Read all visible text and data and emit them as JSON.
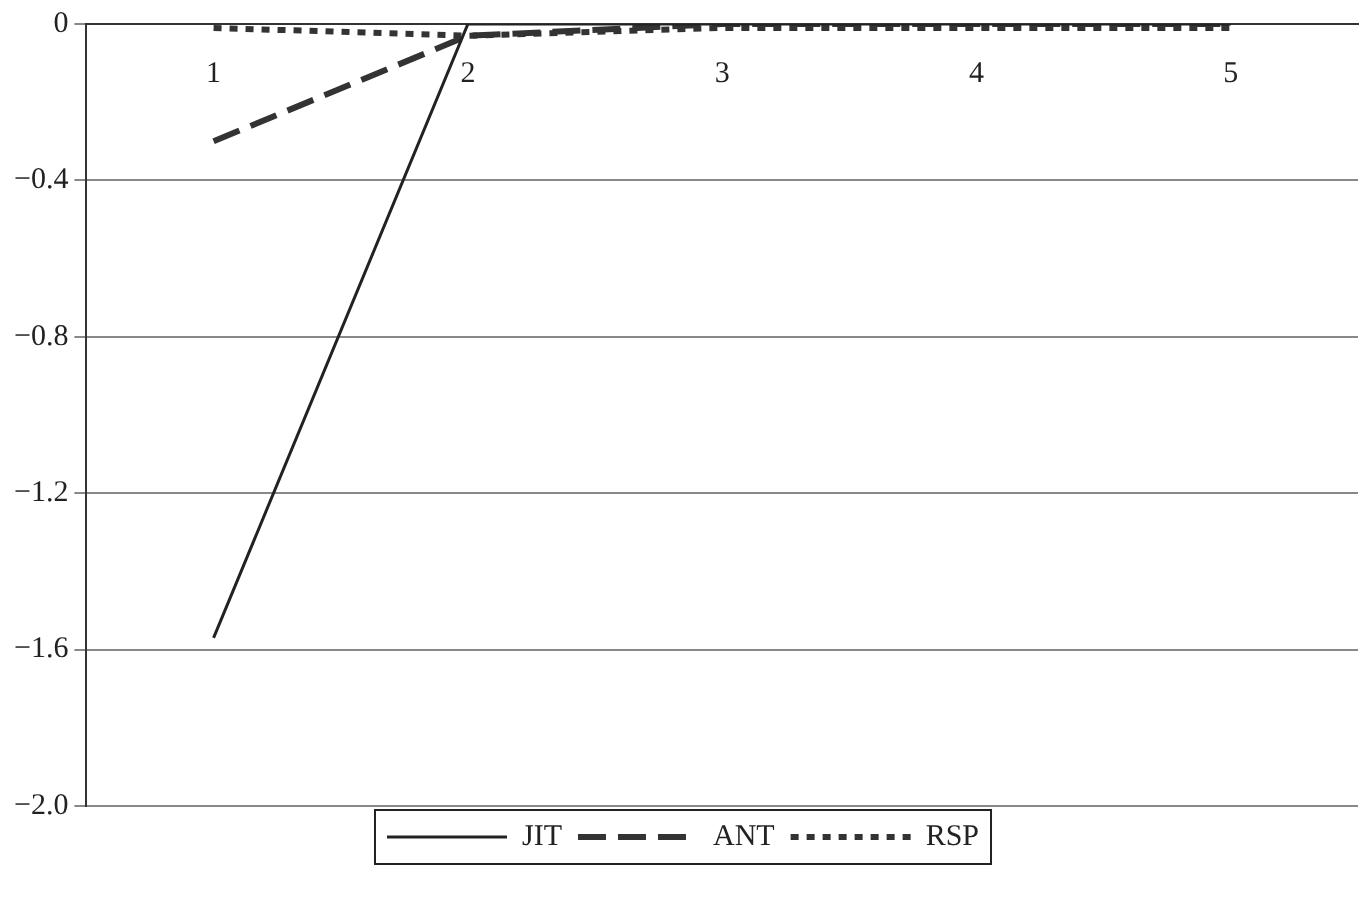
{
  "chart_data": {
    "type": "line",
    "categories": [
      "1",
      "2",
      "3",
      "4",
      "5"
    ],
    "series": [
      {
        "name": "JIT",
        "color": "#222222",
        "line_style": "solid",
        "values": [
          -1.57,
          0,
          0,
          0,
          0
        ]
      },
      {
        "name": "ANT",
        "color": "#333333",
        "line_style": "dashed",
        "values": [
          -0.3,
          -0.03,
          0,
          0,
          0
        ]
      },
      {
        "name": "RSP",
        "color": "#333333",
        "line_style": "dotted",
        "values": [
          -0.01,
          -0.03,
          -0.01,
          -0.01,
          -0.01
        ]
      }
    ],
    "ylim": [
      -2.0,
      0
    ],
    "yticks": [
      {
        "value": -2.0,
        "label": "−2.0"
      },
      {
        "value": -1.6,
        "label": "−1.6"
      },
      {
        "value": -1.2,
        "label": "−1.2"
      },
      {
        "value": -0.8,
        "label": "−0.8"
      },
      {
        "value": -0.4,
        "label": "−0.4"
      },
      0
    ],
    "grid": "y",
    "legend": "bottom",
    "marker": "none"
  }
}
